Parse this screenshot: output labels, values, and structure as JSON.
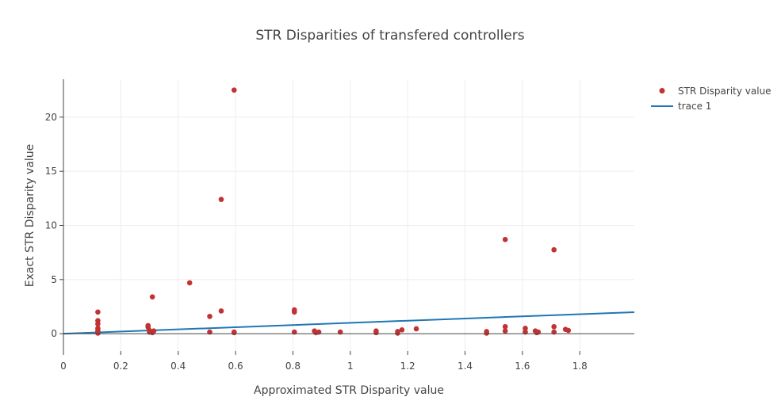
{
  "colors": {
    "marker": "#c23233",
    "line": "#1f77b4",
    "grid": "#eeeeee",
    "zero_line": "#444444",
    "axis": "#444444"
  },
  "chart_data": {
    "type": "scatter",
    "title": "STR Disparities of transfered controllers",
    "xlabel": "Approximated STR Disparity value",
    "ylabel": "Exact STR Disparity value",
    "xlim": [
      0,
      1.99
    ],
    "ylim": [
      -1.6,
      23.5
    ],
    "x_ticks": [
      0,
      0.2,
      0.4,
      0.6,
      0.8,
      1,
      1.2,
      1.4,
      1.6,
      1.8
    ],
    "x_tick_labels": [
      "0",
      "0.2",
      "0.4",
      "0.6",
      "0.8",
      "1",
      "1.2",
      "1.4",
      "1.6",
      "1.8"
    ],
    "y_ticks": [
      0,
      5,
      10,
      15,
      20
    ],
    "y_tick_labels": [
      "0",
      "5",
      "10",
      "15",
      "20"
    ],
    "grid": true,
    "legend_position": "top-right",
    "series": [
      {
        "name": "STR Disparity value",
        "mode": "markers",
        "color": "#c23233",
        "points": [
          [
            0.12,
            2.0
          ],
          [
            0.12,
            1.2
          ],
          [
            0.12,
            0.9
          ],
          [
            0.12,
            0.5
          ],
          [
            0.12,
            0.3
          ],
          [
            0.12,
            0.15
          ],
          [
            0.12,
            0.05
          ],
          [
            0.295,
            0.75
          ],
          [
            0.295,
            0.6
          ],
          [
            0.3,
            0.3
          ],
          [
            0.3,
            0.15
          ],
          [
            0.31,
            0.1
          ],
          [
            0.315,
            0.25
          ],
          [
            0.31,
            3.4
          ],
          [
            0.44,
            4.7
          ],
          [
            0.51,
            1.6
          ],
          [
            0.51,
            0.15
          ],
          [
            0.55,
            12.4
          ],
          [
            0.55,
            2.1
          ],
          [
            0.595,
            22.5
          ],
          [
            0.595,
            0.15
          ],
          [
            0.595,
            0.1
          ],
          [
            0.805,
            2.2
          ],
          [
            0.805,
            2.0
          ],
          [
            0.805,
            0.15
          ],
          [
            0.875,
            0.25
          ],
          [
            0.88,
            0.1
          ],
          [
            0.89,
            0.15
          ],
          [
            0.965,
            0.15
          ],
          [
            1.09,
            0.25
          ],
          [
            1.09,
            0.1
          ],
          [
            1.165,
            0.2
          ],
          [
            1.165,
            0.05
          ],
          [
            1.18,
            0.35
          ],
          [
            1.23,
            0.45
          ],
          [
            1.475,
            0.2
          ],
          [
            1.475,
            0.05
          ],
          [
            1.54,
            8.7
          ],
          [
            1.54,
            0.65
          ],
          [
            1.54,
            0.25
          ],
          [
            1.61,
            0.5
          ],
          [
            1.61,
            0.15
          ],
          [
            1.645,
            0.25
          ],
          [
            1.65,
            0.1
          ],
          [
            1.655,
            0.15
          ],
          [
            1.71,
            7.75
          ],
          [
            1.71,
            0.65
          ],
          [
            1.71,
            0.15
          ],
          [
            1.75,
            0.4
          ],
          [
            1.76,
            0.3
          ]
        ]
      },
      {
        "name": "trace 1",
        "mode": "lines",
        "color": "#1f77b4",
        "points": [
          [
            0,
            0
          ],
          [
            1.99,
            1.99
          ]
        ]
      }
    ]
  }
}
